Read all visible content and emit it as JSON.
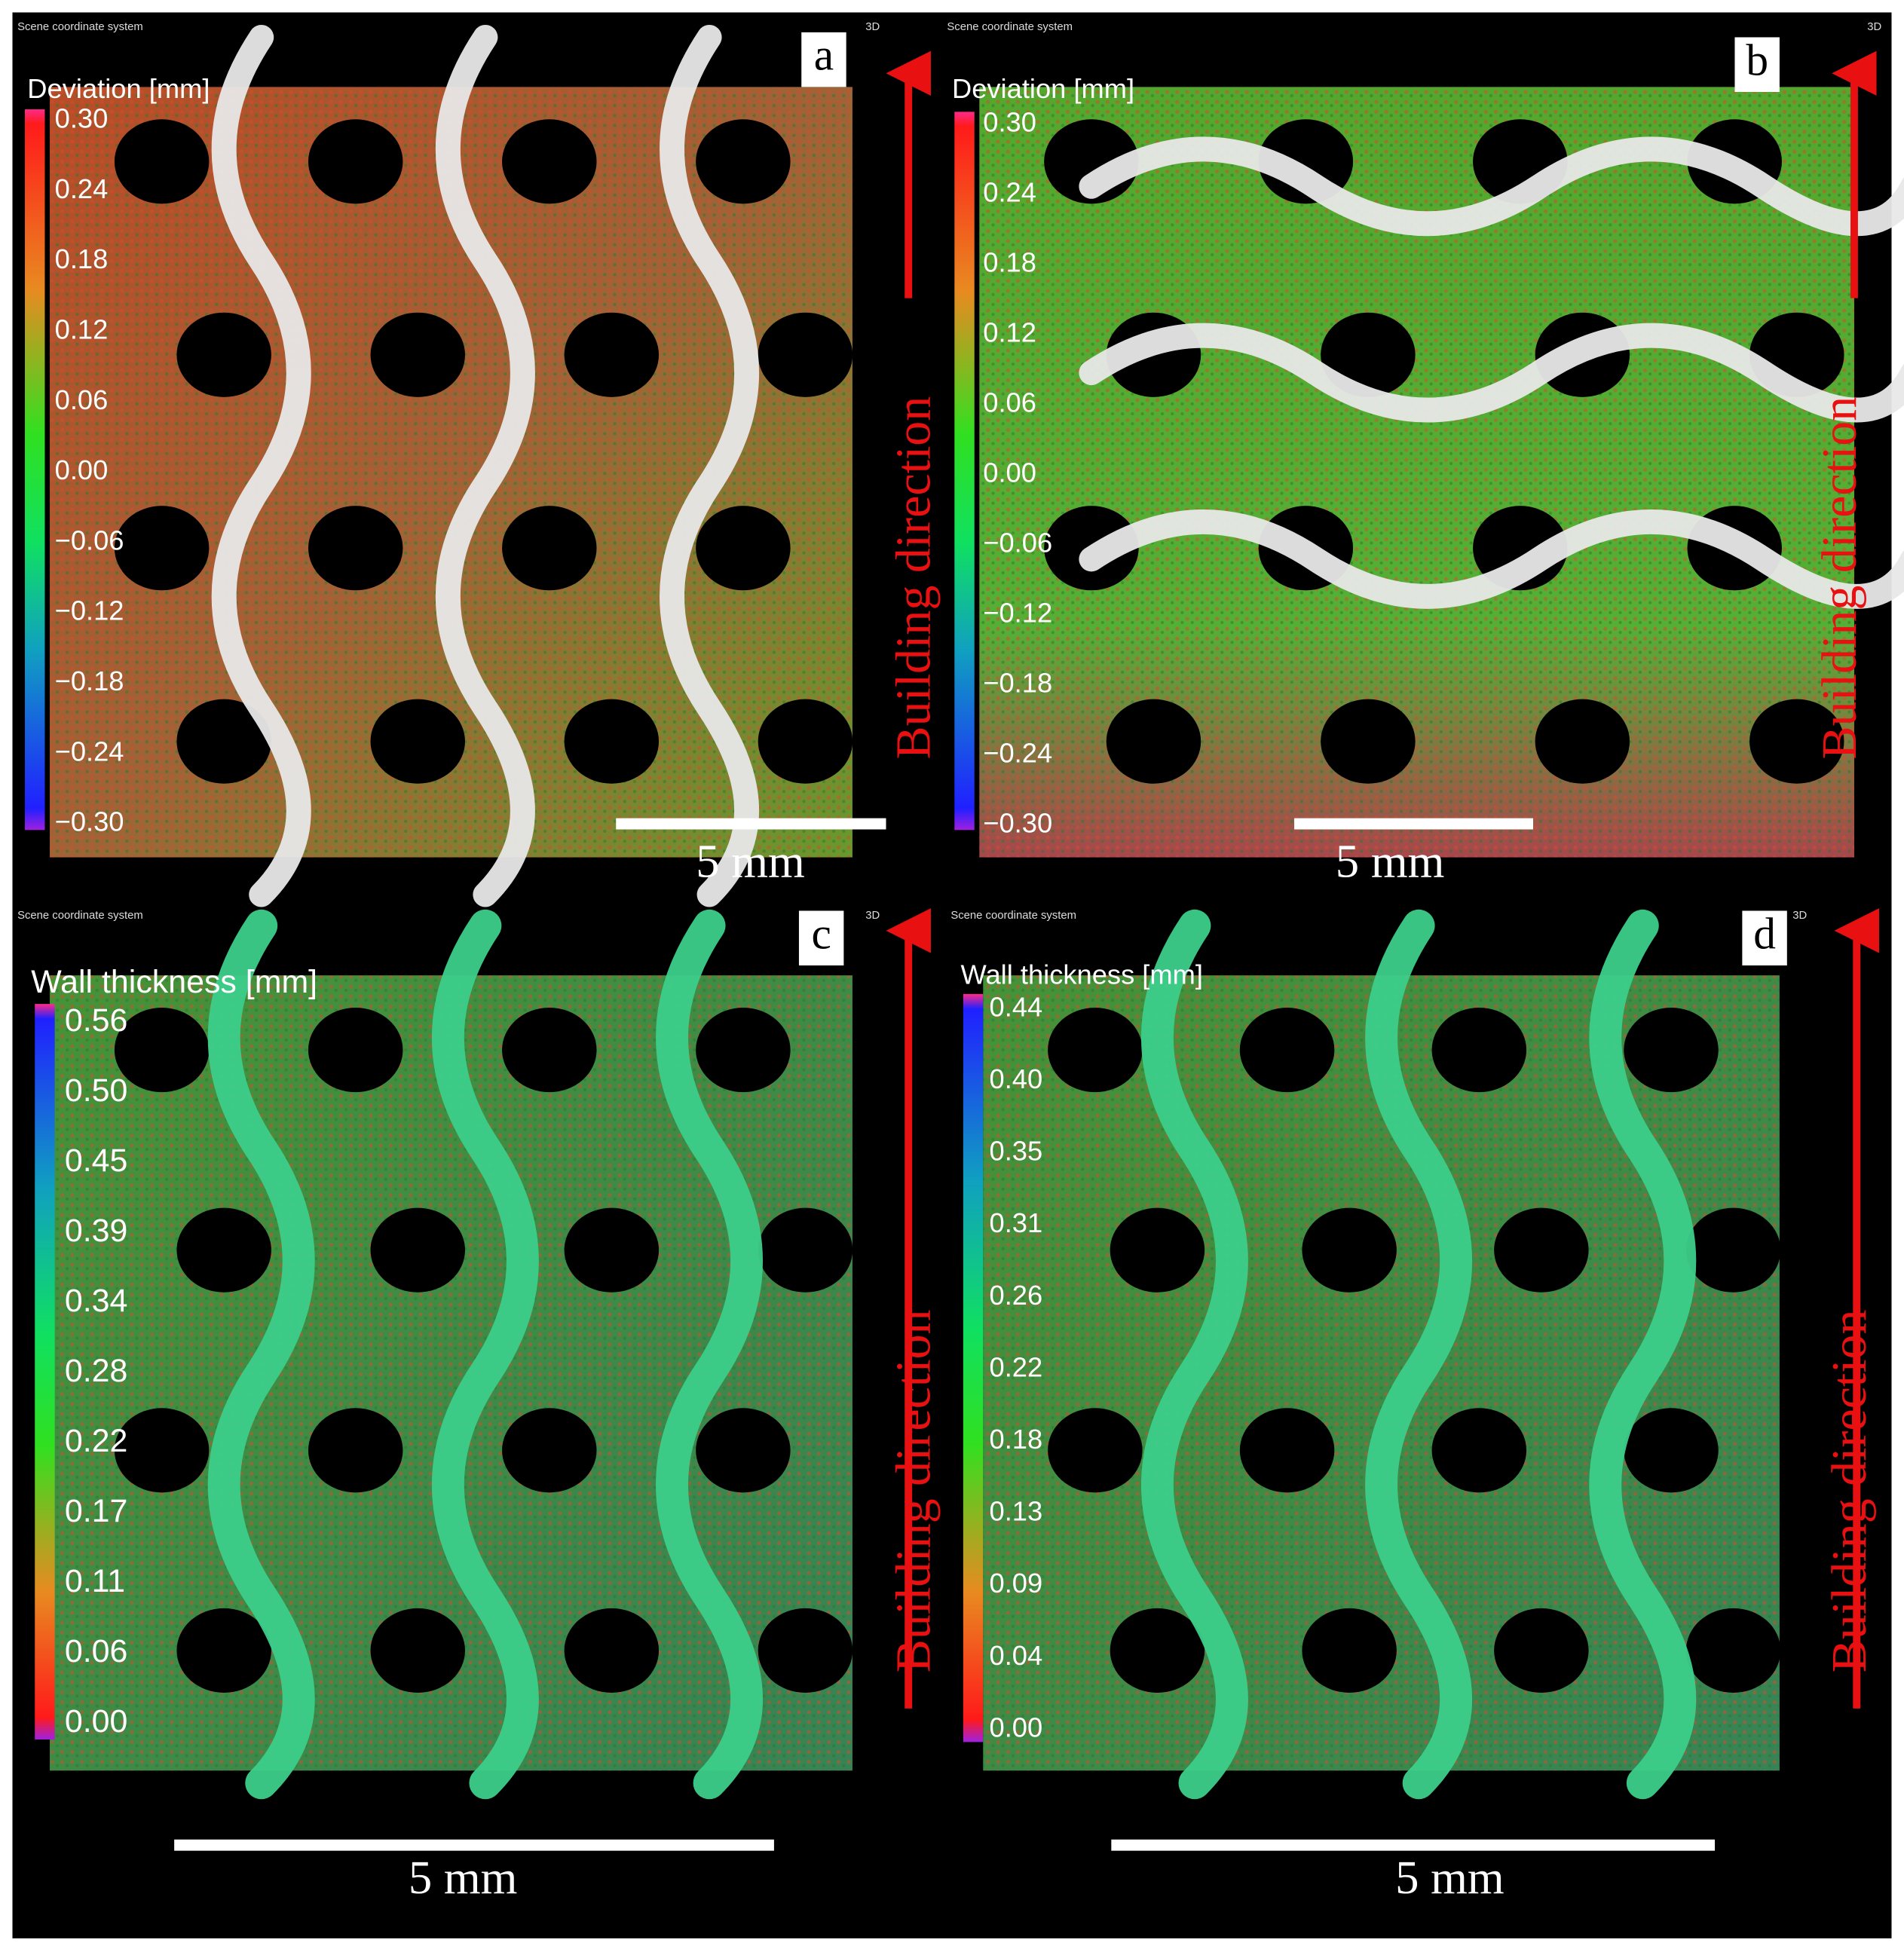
{
  "panels": [
    {
      "label": "a",
      "header": "Scene coordinate system",
      "view": "3D",
      "legend_title": "Deviation [mm]",
      "legend_ticks": [
        "0.30",
        "0.24",
        "0.18",
        "0.12",
        "0.06",
        "0.00",
        "−0.06",
        "−0.12",
        "−0.18",
        "−0.24",
        "−0.30"
      ],
      "scale_bar": "5 mm",
      "direction": "Building direction"
    },
    {
      "label": "b",
      "header": "Scene coordinate system",
      "view": "3D",
      "legend_title": "Deviation [mm]",
      "legend_ticks": [
        "0.30",
        "0.24",
        "0.18",
        "0.12",
        "0.06",
        "0.00",
        "−0.06",
        "−0.12",
        "−0.18",
        "−0.24",
        "−0.30"
      ],
      "scale_bar": "5 mm",
      "direction": "Building direction"
    },
    {
      "label": "c",
      "header": "Scene coordinate system",
      "view": "3D",
      "legend_title": "Wall thickness [mm]",
      "legend_ticks": [
        "0.56",
        "0.50",
        "0.45",
        "0.39",
        "0.34",
        "0.28",
        "0.22",
        "0.17",
        "0.11",
        "0.06",
        "0.00"
      ],
      "scale_bar": "5 mm",
      "direction": "Building direction"
    },
    {
      "label": "d",
      "header": "Scene coordinate system",
      "view": "3D",
      "legend_title": "Wall thickness [mm]",
      "legend_ticks": [
        "0.44",
        "0.40",
        "0.35",
        "0.31",
        "0.26",
        "0.22",
        "0.18",
        "0.13",
        "0.09",
        "0.04",
        "0.00"
      ],
      "scale_bar": "5 mm",
      "direction": "Building direction"
    }
  ]
}
